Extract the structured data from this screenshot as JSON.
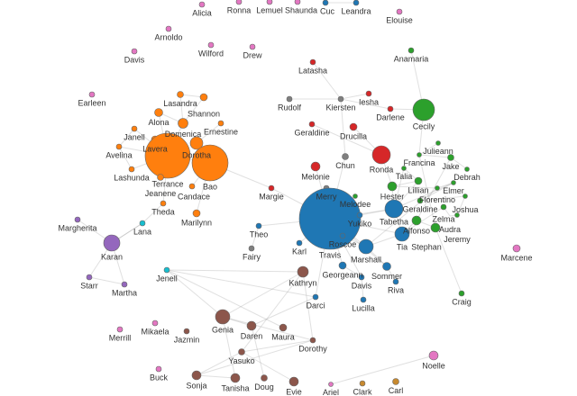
{
  "colors": {
    "orange": "#ff7f0e",
    "blue": "#1f77b4",
    "green": "#2ca02c",
    "red": "#d62728",
    "purple": "#9467bd",
    "brown": "#8c564b",
    "pink": "#e377c2",
    "grey": "#7f7f7f",
    "cyan": "#17becf",
    "gold": "#c7892f"
  },
  "nodes": [
    {
      "name": "Alicia",
      "group": "pink"
    },
    {
      "name": "Ronna",
      "group": "pink"
    },
    {
      "name": "Lemuel",
      "group": "pink"
    },
    {
      "name": "Shaunda",
      "group": "pink"
    },
    {
      "name": "Cuc",
      "group": "blue"
    },
    {
      "name": "Leandra",
      "group": "blue"
    },
    {
      "name": "Elouise",
      "group": "pink"
    },
    {
      "name": "Arnoldo",
      "group": "pink"
    },
    {
      "name": "Wilford",
      "group": "pink"
    },
    {
      "name": "Drew",
      "group": "pink"
    },
    {
      "name": "Davis",
      "group": "pink"
    },
    {
      "name": "Anamaria",
      "group": "green"
    },
    {
      "name": "Latasha",
      "group": "red"
    },
    {
      "name": "Earleen",
      "group": "pink"
    },
    {
      "name": "Lasandra",
      "group": "orange"
    },
    {
      "name": "Shannon",
      "group": "orange"
    },
    {
      "name": "Alona",
      "group": "orange"
    },
    {
      "name": "Domenica",
      "group": "orange"
    },
    {
      "name": "Ernestine",
      "group": "orange"
    },
    {
      "name": "Janell",
      "group": "orange"
    },
    {
      "name": "Lavera",
      "group": "orange"
    },
    {
      "name": "Dorotha",
      "group": "orange"
    },
    {
      "name": "Avelina",
      "group": "orange"
    },
    {
      "name": "Lashunda",
      "group": "orange"
    },
    {
      "name": "Terrance",
      "group": "orange"
    },
    {
      "name": "Bao",
      "group": "orange"
    },
    {
      "name": "Jeanene",
      "group": "orange"
    },
    {
      "name": "Candace",
      "group": "orange"
    },
    {
      "name": "Theda",
      "group": "orange"
    },
    {
      "name": "Marilynn",
      "group": "orange"
    },
    {
      "name": "Rudolf",
      "group": "grey"
    },
    {
      "name": "Kiersten",
      "group": "grey"
    },
    {
      "name": "Iesha",
      "group": "red"
    },
    {
      "name": "Darlene",
      "group": "red"
    },
    {
      "name": "Geraldine",
      "group": "red"
    },
    {
      "name": "Drucilla",
      "group": "red"
    },
    {
      "name": "Cecily",
      "group": "green"
    },
    {
      "name": "Chun",
      "group": "grey"
    },
    {
      "name": "Ronda",
      "group": "red"
    },
    {
      "name": "Melonie",
      "group": "red"
    },
    {
      "name": "Merry",
      "group": "grey"
    },
    {
      "name": "Margie",
      "group": "red"
    },
    {
      "name": "Julieann",
      "group": "green"
    },
    {
      "name": "Francina",
      "group": "green"
    },
    {
      "name": "Jake",
      "group": "green"
    },
    {
      "name": "Debrah",
      "group": "green"
    },
    {
      "name": "Talia",
      "group": "green"
    },
    {
      "name": "Lillian",
      "group": "green"
    },
    {
      "name": "Hester",
      "group": "green"
    },
    {
      "name": "Florentino",
      "group": "green"
    },
    {
      "name": "Elmer",
      "group": "green"
    },
    {
      "name": "Geraldine",
      "group": "green"
    },
    {
      "name": "Melodee",
      "group": "green"
    },
    {
      "name": "Joshua",
      "group": "green"
    },
    {
      "name": "Zelma",
      "group": "green"
    },
    {
      "name": "Audra",
      "group": "green"
    },
    {
      "name": "Jeremy",
      "group": "green"
    },
    {
      "name": "Alfonso",
      "group": "green"
    },
    {
      "name": "Stephan",
      "group": "green"
    },
    {
      "name": "Craig",
      "group": "green"
    },
    {
      "name": "Travis",
      "group": "blue"
    },
    {
      "name": "Yukiko",
      "group": "blue"
    },
    {
      "name": "Roscoe",
      "group": "blue"
    },
    {
      "name": "Tabetha",
      "group": "blue"
    },
    {
      "name": "Tia",
      "group": "blue"
    },
    {
      "name": "Marshall",
      "group": "blue"
    },
    {
      "name": "Georgeann",
      "group": "blue"
    },
    {
      "name": "Davis",
      "group": "blue"
    },
    {
      "name": "Sommer",
      "group": "blue"
    },
    {
      "name": "Riva",
      "group": "blue"
    },
    {
      "name": "Lucilla",
      "group": "blue"
    },
    {
      "name": "Darci",
      "group": "blue"
    },
    {
      "name": "Karl",
      "group": "blue"
    },
    {
      "name": "Theo",
      "group": "blue"
    },
    {
      "name": "Fairy",
      "group": "grey"
    },
    {
      "name": "Margherita",
      "group": "purple"
    },
    {
      "name": "Karan",
      "group": "purple"
    },
    {
      "name": "Starr",
      "group": "purple"
    },
    {
      "name": "Martha",
      "group": "purple"
    },
    {
      "name": "Lana",
      "group": "cyan"
    },
    {
      "name": "Jenell",
      "group": "cyan"
    },
    {
      "name": "Kathryn",
      "group": "brown"
    },
    {
      "name": "Genia",
      "group": "brown"
    },
    {
      "name": "Daren",
      "group": "brown"
    },
    {
      "name": "Maura",
      "group": "brown"
    },
    {
      "name": "Dorothy",
      "group": "brown"
    },
    {
      "name": "Yasuko",
      "group": "brown"
    },
    {
      "name": "Sonja",
      "group": "brown"
    },
    {
      "name": "Tanisha",
      "group": "brown"
    },
    {
      "name": "Doug",
      "group": "brown"
    },
    {
      "name": "Evie",
      "group": "brown"
    },
    {
      "name": "Jazmin",
      "group": "brown"
    },
    {
      "name": "Merrill",
      "group": "pink"
    },
    {
      "name": "Mikaela",
      "group": "pink"
    },
    {
      "name": "Buck",
      "group": "pink"
    },
    {
      "name": "Ariel",
      "group": "pink"
    },
    {
      "name": "Noelle",
      "group": "pink"
    },
    {
      "name": "Marcene",
      "group": "pink"
    },
    {
      "name": "Clark",
      "group": "gold"
    },
    {
      "name": "Carl",
      "group": "gold"
    }
  ],
  "links": [
    [
      4,
      5
    ],
    [
      11,
      36
    ],
    [
      12,
      31
    ],
    [
      30,
      31
    ],
    [
      31,
      37
    ],
    [
      31,
      32
    ],
    [
      31,
      33
    ],
    [
      34,
      38
    ],
    [
      35,
      38
    ],
    [
      37,
      60
    ],
    [
      39,
      60
    ],
    [
      40,
      60
    ],
    [
      38,
      48
    ],
    [
      33,
      36
    ],
    [
      14,
      17
    ],
    [
      15,
      17
    ],
    [
      16,
      24
    ],
    [
      17,
      24
    ],
    [
      18,
      21
    ],
    [
      19,
      24
    ],
    [
      20,
      24
    ],
    [
      21,
      25
    ],
    [
      22,
      24
    ],
    [
      23,
      24
    ],
    [
      24,
      25
    ],
    [
      26,
      24
    ],
    [
      27,
      25
    ],
    [
      28,
      24
    ],
    [
      29,
      25
    ],
    [
      14,
      15
    ],
    [
      16,
      17
    ],
    [
      19,
      22
    ],
    [
      22,
      23
    ],
    [
      25,
      41
    ],
    [
      41,
      60
    ],
    [
      36,
      43
    ],
    [
      42,
      43
    ],
    [
      43,
      44
    ],
    [
      44,
      45
    ],
    [
      46,
      47
    ],
    [
      47,
      48
    ],
    [
      48,
      49
    ],
    [
      49,
      50
    ],
    [
      50,
      51
    ],
    [
      51,
      53
    ],
    [
      52,
      60
    ],
    [
      53,
      56
    ],
    [
      54,
      55
    ],
    [
      55,
      56
    ],
    [
      57,
      58
    ],
    [
      58,
      59
    ],
    [
      46,
      63
    ],
    [
      47,
      63
    ],
    [
      48,
      63
    ],
    [
      54,
      64
    ],
    [
      57,
      64
    ],
    [
      49,
      65
    ],
    [
      50,
      63
    ],
    [
      44,
      57
    ],
    [
      43,
      58
    ],
    [
      60,
      61
    ],
    [
      60,
      62
    ],
    [
      60,
      63
    ],
    [
      60,
      64
    ],
    [
      60,
      65
    ],
    [
      60,
      66
    ],
    [
      60,
      67
    ],
    [
      60,
      68
    ],
    [
      60,
      71
    ],
    [
      60,
      72
    ],
    [
      61,
      63
    ],
    [
      62,
      65
    ],
    [
      63,
      64
    ],
    [
      64,
      65
    ],
    [
      65,
      68
    ],
    [
      66,
      67
    ],
    [
      68,
      69
    ],
    [
      67,
      70
    ],
    [
      71,
      80
    ],
    [
      73,
      74
    ],
    [
      60,
      73
    ],
    [
      75,
      76
    ],
    [
      76,
      77
    ],
    [
      76,
      78
    ],
    [
      77,
      78
    ],
    [
      76,
      79
    ],
    [
      28,
      79
    ],
    [
      79,
      76
    ],
    [
      80,
      81
    ],
    [
      80,
      82
    ],
    [
      81,
      82
    ],
    [
      82,
      83
    ],
    [
      81,
      85
    ],
    [
      82,
      85
    ],
    [
      82,
      88
    ],
    [
      83,
      89
    ],
    [
      83,
      71
    ],
    [
      84,
      80
    ],
    [
      85,
      87
    ],
    [
      85,
      86
    ],
    [
      86,
      87
    ],
    [
      87,
      88
    ],
    [
      81,
      86
    ],
    [
      86,
      90
    ],
    [
      95,
      96
    ]
  ]
}
